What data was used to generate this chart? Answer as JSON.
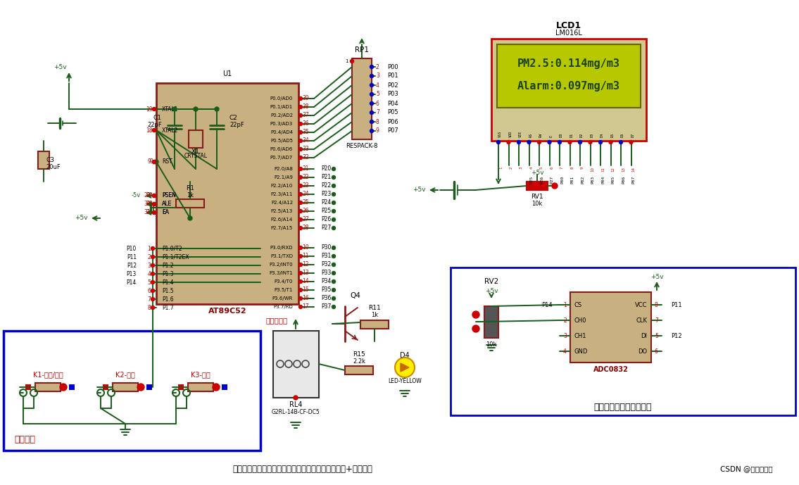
{
  "bg": "#ffffff",
  "wc": "#1a5c1a",
  "ce": "#8b1a1a",
  "cf": "#c8b080",
  "bc": "#0000cc",
  "rc": "#cc0000",
  "lcd_bg": "#b8c800",
  "lcd_fg": "#1a4200",
  "lcd_line1": "PM2.5:0.114mg/m3",
  "lcd_line2": "Alarm:0.097mg/m3",
  "btm_txt": "黄灯点亮表示继电器导通，开启空气净化设备（风扇+负离子）",
  "btm_rt": "CSDN @电子开发圈",
  "mcu_pins_left": [
    "XTAL1",
    "XTAL2",
    "RST",
    "PSEN",
    "ALE",
    "EA"
  ],
  "mcu_pins_left_nums": [
    19,
    18,
    9,
    29,
    30,
    31
  ],
  "p0_inner": [
    "P0.0/AD0",
    "P0.1/AD1",
    "P0.2/AD2",
    "P0.3/AD3",
    "P0.4/AD4",
    "P0.5/AD5",
    "P0.6/AD6",
    "P0.7/AD7"
  ],
  "p0_nums": [
    39,
    38,
    37,
    36,
    35,
    34,
    33,
    32
  ],
  "p2_inner": [
    "P2.0/A8",
    "P2.1/A9",
    "P2.2/A10",
    "P2.3/A11",
    "P2.4/A12",
    "P2.5/A13",
    "P2.6/A14",
    "P2.7/A15"
  ],
  "p2_nums": [
    21,
    22,
    23,
    24,
    25,
    26,
    27,
    28
  ],
  "p3_inner": [
    "P3.0/RXD",
    "P3.1/TXD",
    "P3.2/INT0",
    "P3.3/INT1",
    "P3.4/T0",
    "P3.5/T1",
    "P3.6/WR",
    "P3.7/RD"
  ],
  "p3_nums": [
    10,
    11,
    12,
    13,
    14,
    15,
    16,
    17
  ],
  "p1_inner": [
    "P1.0/T2",
    "P1.1/T2EX",
    "P1.2",
    "P1.3",
    "P1.4",
    "P1.5",
    "P1.6",
    "P1.7"
  ],
  "p1_nums": [
    1,
    2,
    3,
    4,
    5,
    6,
    7,
    8
  ],
  "p3_out": [
    "P30",
    "P31",
    "P32",
    "P33",
    "P34",
    "P35",
    "P36",
    "P37"
  ],
  "p2_out": [
    "P20",
    "P21",
    "P22",
    "P23",
    "P24",
    "P25",
    "P26",
    "P27"
  ],
  "p0_out": [
    "P00",
    "P01",
    "P02",
    "P03",
    "P04",
    "P05",
    "P06",
    "P07"
  ],
  "p1_out": [
    "P10",
    "P11",
    "P12",
    "P13",
    "P14"
  ]
}
